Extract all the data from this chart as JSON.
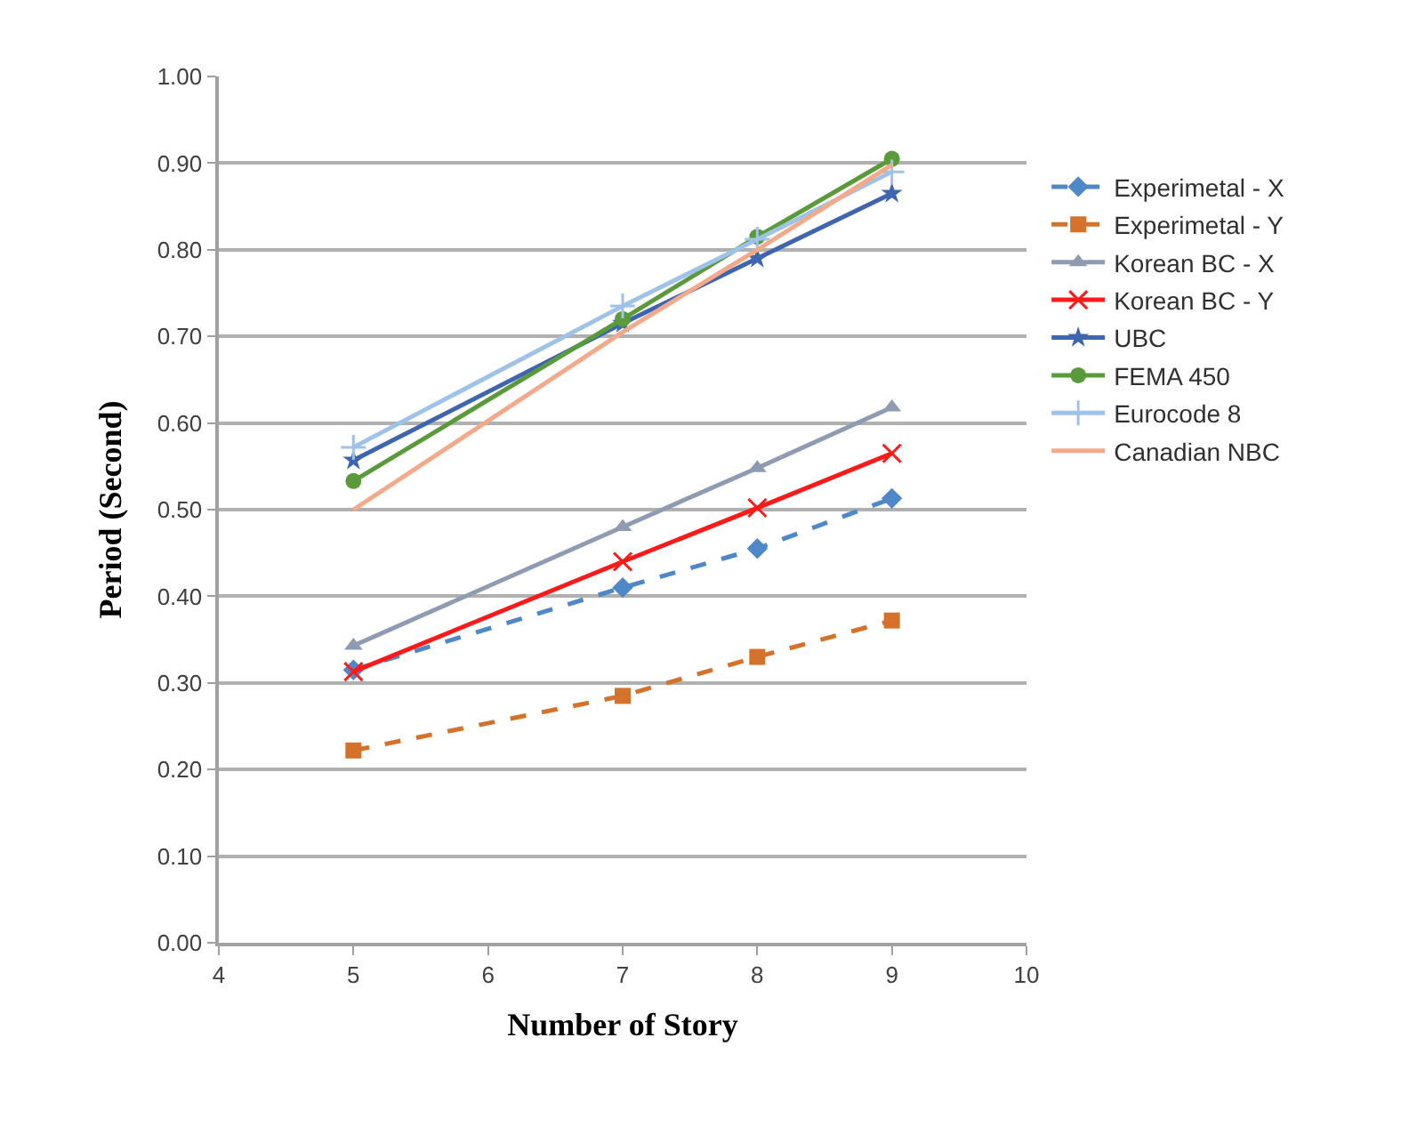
{
  "chart_data": {
    "type": "line",
    "xlabel": "Number of Story",
    "ylabel": "Period (Second)",
    "x": [
      5,
      7,
      8,
      9
    ],
    "xlim": [
      4,
      10
    ],
    "xticks": [
      4,
      5,
      6,
      7,
      8,
      9,
      10
    ],
    "ylim": [
      0,
      1
    ],
    "yticks": [
      {
        "value": 0,
        "label": "0.00"
      },
      {
        "value": 0.1,
        "label": "0.10"
      },
      {
        "value": 0.2,
        "label": "0.20"
      },
      {
        "value": 0.3,
        "label": "0.30"
      },
      {
        "value": 0.4,
        "label": "0.40"
      },
      {
        "value": 0.5,
        "label": "0.50"
      },
      {
        "value": 0.6,
        "label": "0.60"
      },
      {
        "value": 0.7,
        "label": "0.70"
      },
      {
        "value": 0.8,
        "label": "0.80"
      },
      {
        "value": 0.9,
        "label": "0.90"
      },
      {
        "value": 1,
        "label": "1.00"
      }
    ],
    "grid": "y",
    "legend": "right",
    "series": [
      {
        "name": "Experimetal - X",
        "color": "#4f88c6",
        "marker": "diamond",
        "line_style": "dashed",
        "values": [
          0.315,
          0.41,
          0.455,
          0.513
        ]
      },
      {
        "name": "Experimetal - Y",
        "color": "#d4722b",
        "marker": "square",
        "line_style": "dashed",
        "values": [
          0.222,
          0.285,
          0.33,
          0.372
        ]
      },
      {
        "name": "Korean BC - X",
        "color": "#8e9bb0",
        "marker": "triangle",
        "line_style": "solid",
        "values": [
          0.343,
          0.48,
          0.548,
          0.618
        ]
      },
      {
        "name": "Korean BC - Y",
        "color": "#ff1a1a",
        "marker": "x",
        "line_style": "solid",
        "values": [
          0.313,
          0.44,
          0.502,
          0.565
        ]
      },
      {
        "name": "UBC",
        "color": "#3f64b0",
        "marker": "star",
        "line_style": "solid",
        "values": [
          0.557,
          0.715,
          0.79,
          0.865
        ]
      },
      {
        "name": "FEMA 450",
        "color": "#5b9a3a",
        "marker": "circle",
        "line_style": "solid",
        "values": [
          0.533,
          0.72,
          0.815,
          0.905
        ]
      },
      {
        "name": "Eurocode 8",
        "color": "#9fc2e8",
        "marker": "cross",
        "line_style": "solid",
        "values": [
          0.572,
          0.735,
          0.812,
          0.89
        ]
      },
      {
        "name": "Canadian NBC",
        "color": "#f4a98a",
        "marker": "none",
        "line_style": "solid",
        "values": [
          0.5,
          0.705,
          0.8,
          0.898
        ]
      }
    ]
  }
}
